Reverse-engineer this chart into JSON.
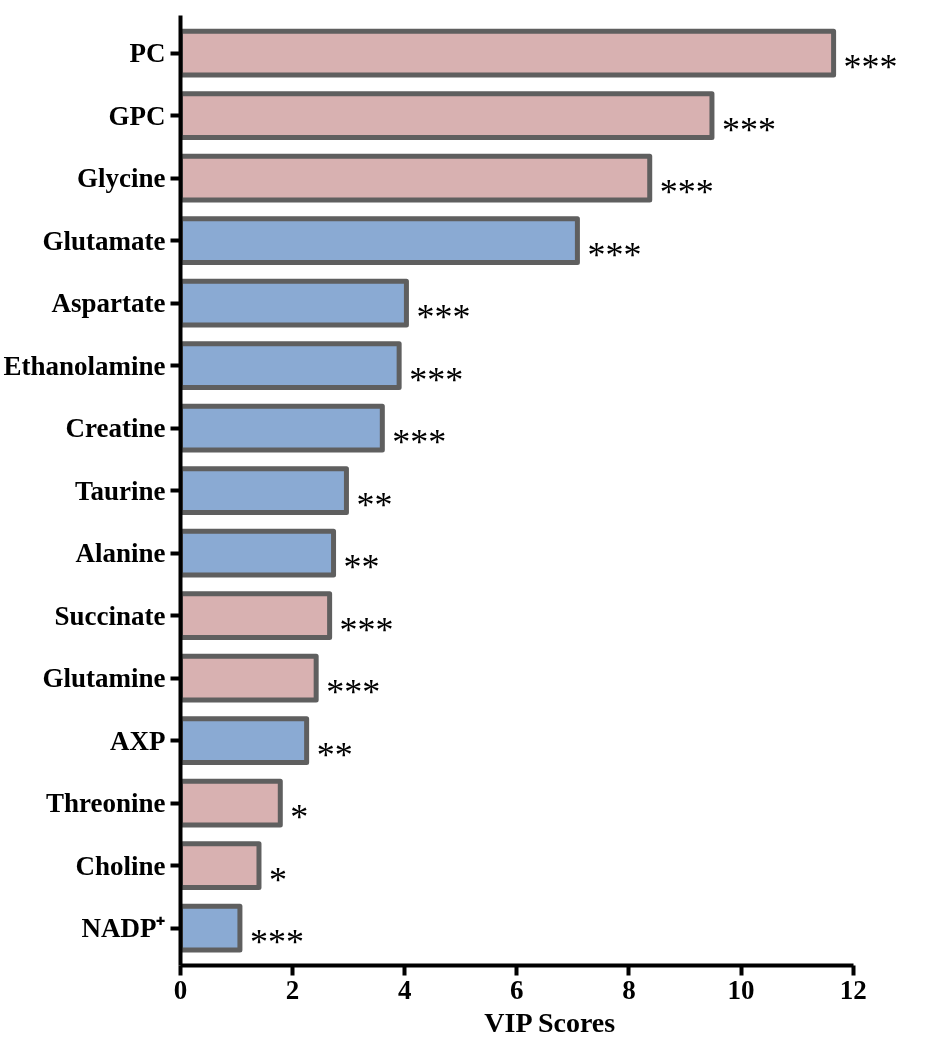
{
  "chart_data": {
    "type": "bar",
    "orientation": "horizontal",
    "xlabel": "VIP Scores",
    "categories": [
      "PC",
      "GPC",
      "Glycine",
      "Glutamate",
      "Aspartate",
      "Ethanolamine",
      "Creatine",
      "Taurine",
      "Alanine",
      "Succinate",
      "Glutamine",
      "AXP",
      "Threonine",
      "Choline",
      "NADP⁺"
    ],
    "values": [
      11.65,
      9.48,
      8.37,
      7.08,
      4.03,
      3.9,
      3.6,
      2.96,
      2.73,
      2.66,
      2.42,
      2.25,
      1.78,
      1.4,
      1.06
    ],
    "colors": [
      "#d8b1b1",
      "#d8b1b1",
      "#d8b1b1",
      "#8aaad3",
      "#8aaad3",
      "#8aaad3",
      "#8aaad3",
      "#8aaad3",
      "#8aaad3",
      "#d8b1b1",
      "#d8b1b1",
      "#8aaad3",
      "#d8b1b1",
      "#d8b1b1",
      "#8aaad3"
    ],
    "value_labels": [
      "***",
      "***",
      "***",
      "***",
      "***",
      "***",
      "***",
      "**",
      "**",
      "***",
      "***",
      "**",
      "*",
      "*",
      "***"
    ],
    "xlim": [
      0,
      12
    ],
    "xticks": [
      0,
      2,
      4,
      6,
      8,
      10,
      12
    ],
    "grid": false
  }
}
